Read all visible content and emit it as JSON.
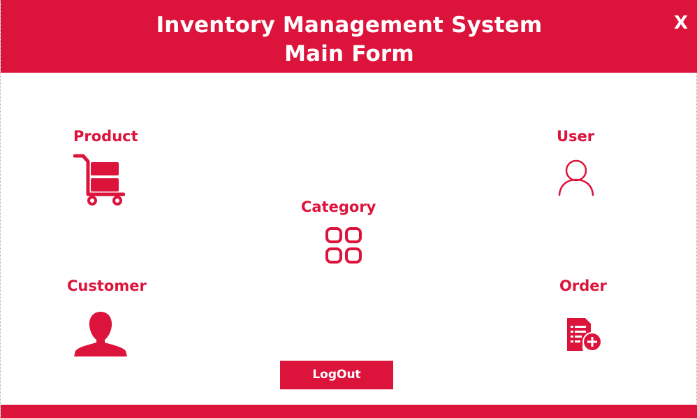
{
  "window": {
    "title_line1": "Inventory Management System",
    "title_line2": "Main Form",
    "close_label": "X"
  },
  "menu": {
    "product": "Product",
    "user": "User",
    "category": "Category",
    "customer": "Customer",
    "order": "Order"
  },
  "icons": {
    "product": "cart-icon",
    "user": "user-outline-icon",
    "category": "grid-icon",
    "customer": "person-silhouette-icon",
    "order": "add-order-icon"
  },
  "logout_label": "LogOut",
  "colors": {
    "accent": "#dc143c",
    "background": "#ffffff",
    "text_on_accent": "#ffffff"
  }
}
